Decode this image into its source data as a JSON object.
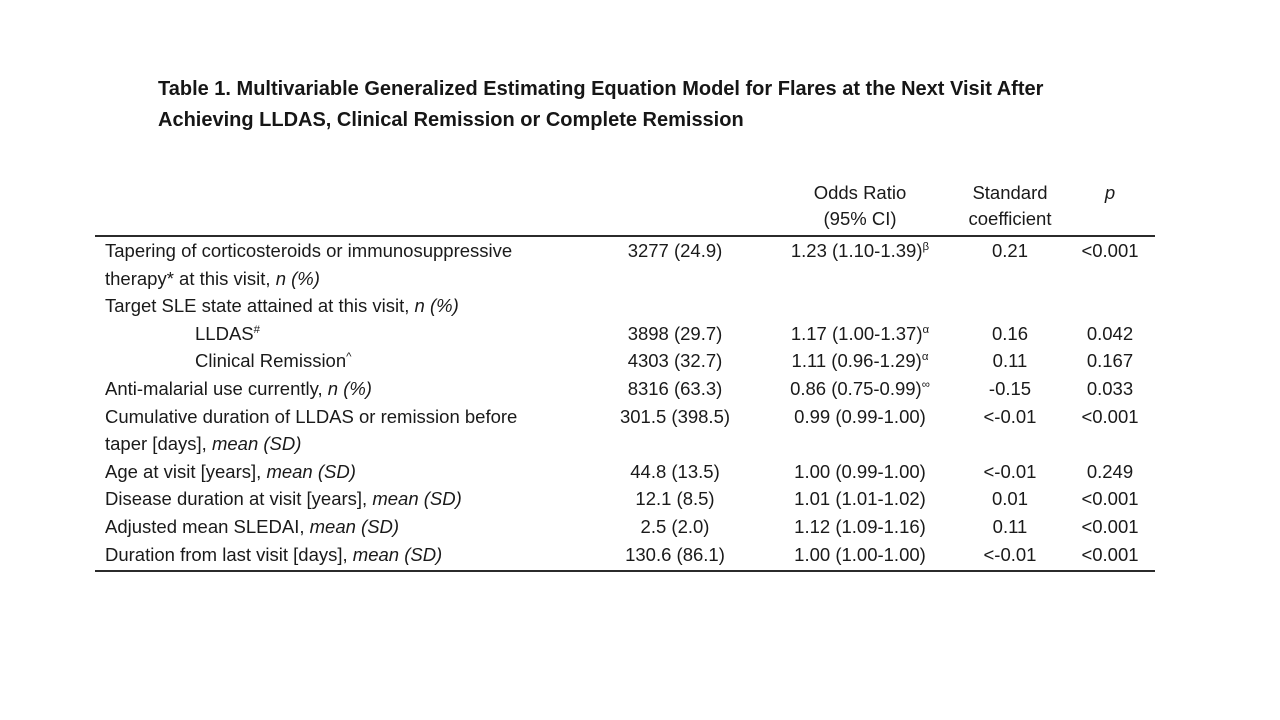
{
  "colors": {
    "background": "#ffffff",
    "text": "#1a1a1a",
    "rule": "#2b2b2b"
  },
  "title": "Table 1. Multivariable Generalized Estimating Equation Model for Flares at the Next Visit After Achieving LLDAS, Clinical Remission or Complete Remission",
  "table": {
    "header": {
      "odds_ratio_line1": "Odds Ratio",
      "odds_ratio_line2": "(95% CI)",
      "std_coef_line1": "Standard",
      "std_coef_line2": "coefficient",
      "p": "p"
    },
    "rows": [
      {
        "label": "Tapering of corticosteroids or immunosuppressive therapy* at this visit, ",
        "label_sup": "",
        "label_italic": "n (%)",
        "n": "3277 (24.9)",
        "or": "1.23 (1.10-1.39)",
        "or_sup": "β",
        "sc": "0.21",
        "p": "<0.001"
      },
      {
        "label": "Target SLE state attained at this visit, ",
        "label_sup": "",
        "label_italic": "n (%)",
        "n": "",
        "or": "",
        "or_sup": "",
        "sc": "",
        "p": ""
      },
      {
        "label": "LLDAS",
        "label_sup": "#",
        "label_italic": "",
        "n": "3898 (29.7)",
        "or": "1.17 (1.00-1.37)",
        "or_sup": "α",
        "sc": "0.16",
        "p": "0.042"
      },
      {
        "label": "Clinical Remission",
        "label_sup": "^",
        "label_italic": "",
        "n": "4303 (32.7)",
        "or": "1.11 (0.96-1.29)",
        "or_sup": "α",
        "sc": "0.11",
        "p": "0.167"
      },
      {
        "label": "Anti-malarial use currently, ",
        "label_sup": "",
        "label_italic": "n (%)",
        "n": "8316 (63.3)",
        "or": "0.86 (0.75-0.99)",
        "or_sup": "∞",
        "sc": "-0.15",
        "p": "0.033"
      },
      {
        "label": "Cumulative duration of LLDAS or remission before taper [days], ",
        "label_sup": "",
        "label_italic": "mean (SD)",
        "n": "301.5 (398.5)",
        "or": "0.99 (0.99-1.00)",
        "or_sup": "",
        "sc": "<-0.01",
        "p": "<0.001"
      },
      {
        "label": "Age at visit [years], ",
        "label_sup": "",
        "label_italic": "mean (SD)",
        "n": "44.8 (13.5)",
        "or": "1.00 (0.99-1.00)",
        "or_sup": "",
        "sc": "<-0.01",
        "p": "0.249"
      },
      {
        "label": "Disease duration at visit [years], ",
        "label_sup": "",
        "label_italic": "mean (SD)",
        "n": "12.1 (8.5)",
        "or": "1.01 (1.01-1.02)",
        "or_sup": "",
        "sc": "0.01",
        "p": "<0.001"
      },
      {
        "label": "Adjusted mean SLEDAI, ",
        "label_sup": "",
        "label_italic": "mean (SD)",
        "n": "2.5 (2.0)",
        "or": "1.12 (1.09-1.16)",
        "or_sup": "",
        "sc": "0.11",
        "p": "<0.001"
      },
      {
        "label": "Duration from last visit [days], ",
        "label_sup": "",
        "label_italic": "mean (SD)",
        "n": "130.6 (86.1)",
        "or": "1.00 (1.00-1.00)",
        "or_sup": "",
        "sc": "<-0.01",
        "p": "<0.001"
      }
    ]
  }
}
